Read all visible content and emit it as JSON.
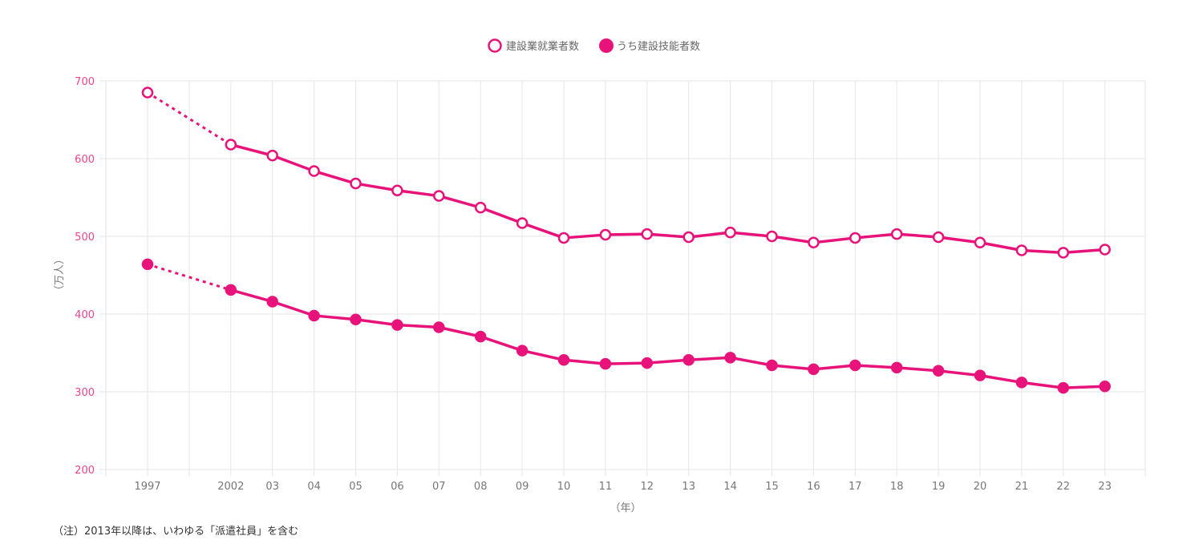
{
  "chart_data": {
    "type": "line",
    "categories": [
      "1997",
      "",
      "2002",
      "03",
      "04",
      "05",
      "06",
      "07",
      "08",
      "09",
      "10",
      "11",
      "12",
      "13",
      "14",
      "15",
      "16",
      "17",
      "18",
      "19",
      "20",
      "21",
      "22",
      "23"
    ],
    "series": [
      {
        "name": "建設業就業者数",
        "marker": "open-circle",
        "values": [
          685,
          null,
          618,
          604,
          584,
          568,
          559,
          552,
          537,
          517,
          498,
          502,
          503,
          499,
          505,
          500,
          492,
          498,
          503,
          499,
          492,
          482,
          479,
          483
        ]
      },
      {
        "name": "うち建設技能者数",
        "marker": "filled-circle",
        "values": [
          464,
          null,
          431,
          416,
          398,
          393,
          386,
          383,
          371,
          353,
          341,
          336,
          337,
          341,
          344,
          334,
          329,
          334,
          331,
          327,
          321,
          312,
          305,
          307
        ]
      }
    ],
    "gap_style": "dotted line between 1997 and 2002",
    "ylabel": "（万人）",
    "xlabel": "（年）",
    "ylim": [
      200,
      700
    ],
    "yticks": [
      "200",
      "300",
      "400",
      "500",
      "600",
      "700"
    ],
    "grid": true,
    "legend": "top-center",
    "color": "#e8137a",
    "tick_color": "#e8468f"
  },
  "footnote": "（注）2013年以降は、いわゆる「派遣社員」を含む"
}
